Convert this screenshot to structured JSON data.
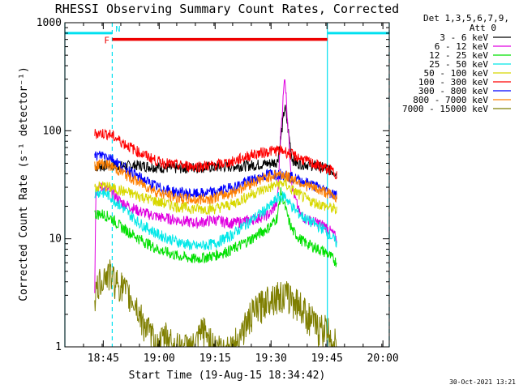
{
  "chart_data": {
    "type": "line",
    "title": "RHESSI Observing Summary Count Rates, Corrected",
    "xlabel": "Start Time (19-Aug-15 18:34:42)",
    "ylabel": "Corrected Count Rate (s⁻¹ detector⁻¹)",
    "yscale": "log",
    "ylim": [
      1,
      1000
    ],
    "y_ticks": [
      1,
      10,
      100,
      1000
    ],
    "y_tick_labels": [
      "1",
      "10",
      "100",
      "1000"
    ],
    "xlim_minutes": [
      0,
      87
    ],
    "x_ticks": [
      "18:45",
      "19:00",
      "19:15",
      "19:30",
      "19:45",
      "20:00"
    ],
    "x_tick_minutes": [
      10.3,
      25.3,
      40.3,
      55.3,
      70.3,
      85.3
    ],
    "legend_header": [
      "Det 1,3,5,6,7,9,",
      "Att 0"
    ],
    "legend_position": "right",
    "footer": "30-Oct-2021 13:21",
    "series": [
      {
        "name": "3 - 6 keV",
        "color": "#000000",
        "x": [
          8,
          10,
          12,
          15,
          20,
          25,
          30,
          35,
          40,
          45,
          50,
          55,
          57,
          58,
          59,
          60,
          61,
          62,
          63,
          65,
          70,
          72,
          73
        ],
        "y": [
          47,
          47,
          48,
          47,
          48,
          46,
          45,
          46,
          46,
          47,
          48,
          50,
          52,
          90,
          170,
          95,
          55,
          50,
          50,
          49,
          45,
          42,
          40
        ]
      },
      {
        "name": "6 - 12 keV",
        "color": "#e000e0",
        "x": [
          8,
          8.3,
          10,
          12,
          15,
          20,
          25,
          30,
          35,
          40,
          45,
          50,
          55,
          57,
          58,
          59,
          60,
          61,
          62,
          63,
          65,
          68,
          70,
          72,
          73
        ],
        "y": [
          3,
          30,
          30,
          28,
          22,
          18,
          16,
          15,
          14,
          15,
          14,
          15,
          17,
          22,
          110,
          330,
          90,
          30,
          22,
          17,
          15,
          14,
          13,
          11,
          10
        ]
      },
      {
        "name": "12 - 25 keV",
        "color": "#00e000",
        "x": [
          8,
          10,
          12,
          15,
          20,
          25,
          30,
          35,
          40,
          45,
          50,
          55,
          57,
          58,
          59,
          60,
          61,
          62,
          63,
          65,
          70,
          72,
          73
        ],
        "y": [
          17,
          17,
          16,
          13,
          10,
          8,
          7,
          6.5,
          7,
          8,
          10,
          13,
          16,
          28,
          20,
          15,
          12,
          11,
          10,
          9,
          7.5,
          6.5,
          6
        ]
      },
      {
        "name": "25 - 50 keV",
        "color": "#00e8e8",
        "x": [
          8,
          10,
          12,
          15,
          20,
          25,
          30,
          35,
          40,
          45,
          50,
          55,
          57,
          59,
          60,
          62,
          65,
          70,
          72,
          73
        ],
        "y": [
          27,
          27,
          25,
          20,
          14,
          11,
          9.5,
          8.5,
          9,
          11,
          15,
          20,
          24,
          25,
          22,
          18,
          15,
          12,
          10,
          9
        ]
      },
      {
        "name": "50 - 100 keV",
        "color": "#d8d800",
        "x": [
          8,
          10,
          12,
          15,
          20,
          25,
          30,
          35,
          40,
          45,
          50,
          55,
          57,
          59,
          60,
          62,
          65,
          70,
          72,
          73
        ],
        "y": [
          30,
          31,
          30,
          28,
          25,
          22,
          20,
          19,
          19,
          21,
          26,
          30,
          32,
          33,
          30,
          27,
          23,
          20,
          19,
          18
        ]
      },
      {
        "name": "100 - 300 keV",
        "color": "#ff0000",
        "x": [
          8,
          10,
          12,
          15,
          20,
          25,
          30,
          35,
          40,
          45,
          50,
          55,
          57,
          59,
          60,
          62,
          65,
          70,
          72,
          73
        ],
        "y": [
          95,
          95,
          93,
          80,
          63,
          52,
          48,
          47,
          48,
          52,
          60,
          65,
          66,
          65,
          62,
          58,
          52,
          45,
          42,
          40
        ]
      },
      {
        "name": "300 - 800 keV",
        "color": "#0000ff",
        "x": [
          8,
          10,
          12,
          15,
          20,
          25,
          30,
          35,
          40,
          45,
          50,
          55,
          57,
          59,
          60,
          62,
          65,
          70,
          72,
          73
        ],
        "y": [
          58,
          60,
          58,
          48,
          37,
          30,
          27,
          26,
          27,
          30,
          35,
          40,
          40,
          40,
          38,
          36,
          33,
          28,
          26,
          25
        ]
      },
      {
        "name": "800 - 7000 keV",
        "color": "#ff8000",
        "x": [
          8,
          10,
          12,
          15,
          20,
          25,
          30,
          35,
          40,
          45,
          50,
          55,
          57,
          59,
          60,
          62,
          65,
          70,
          72,
          73
        ],
        "y": [
          48,
          50,
          48,
          42,
          33,
          27,
          24,
          23,
          24,
          27,
          33,
          38,
          40,
          39,
          37,
          35,
          31,
          27,
          25,
          24
        ]
      },
      {
        "name": "7000 - 15000 keV",
        "color": "#7f7f00",
        "x": [
          8,
          10,
          12,
          14,
          15,
          17,
          19,
          20,
          22,
          25,
          27,
          30,
          35,
          37,
          40,
          45,
          50,
          55,
          60,
          63,
          65,
          68,
          70,
          72,
          73
        ],
        "y": [
          3,
          4.5,
          4.8,
          4,
          3.8,
          3,
          2.5,
          2,
          1.5,
          1,
          1.3,
          1,
          1,
          1.5,
          1,
          1,
          2,
          3,
          3,
          2.5,
          2,
          1.5,
          1.5,
          1.2,
          1
        ]
      }
    ],
    "attenuator_flag": {
      "label": "F",
      "color": "#ee0000",
      "start_min": 12.7,
      "end_min": 70.4,
      "y": 700
    },
    "night_flag": {
      "label": "N",
      "color": "#00e0f0",
      "segments": [
        [
          0,
          12.7
        ],
        [
          70.4,
          87
        ]
      ],
      "y": 800
    },
    "vertical_lines": [
      {
        "minute": 0,
        "style": "solid",
        "color": "#00e0f0"
      },
      {
        "minute": 12.7,
        "style": "dashed",
        "color": "#00e0f0"
      },
      {
        "minute": 70.4,
        "style": "solid",
        "color": "#00e0f0"
      },
      {
        "minute": 87,
        "style": "dashed",
        "color": "#00e0f0"
      }
    ],
    "grid": false
  }
}
